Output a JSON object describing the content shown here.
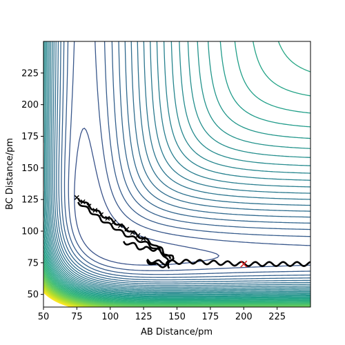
{
  "chart_data": {
    "type": "contour",
    "title": "",
    "xlabel": "AB Distance/pm",
    "ylabel": "BC Distance/pm",
    "xlim": [
      50,
      250
    ],
    "ylim": [
      40,
      250
    ],
    "xticks": [
      50,
      75,
      100,
      125,
      150,
      175,
      200,
      225
    ],
    "yticks": [
      50,
      75,
      100,
      125,
      150,
      175,
      200,
      225
    ],
    "colormap": "viridis",
    "contour_levels": 60,
    "surface": "London-Eyring-Polanyi-Sato potential energy surface (contours)",
    "trajectory": {
      "color": "#000000",
      "marker": "x",
      "start": [
        76,
        126
      ],
      "segments": [
        {
          "x": [
            76,
            95,
            115,
            132,
            145
          ],
          "y": [
            126,
            112,
            100,
            90,
            78
          ],
          "oscillation": 2
        },
        {
          "x": [
            76,
            95,
            112,
            128,
            140,
            145
          ],
          "y": [
            123,
            108,
            97,
            90,
            82,
            71
          ],
          "oscillation": 2
        },
        {
          "x": [
            110,
            125,
            137,
            146,
            143,
            133,
            128,
            138,
            160,
            200,
            250
          ],
          "y": [
            92,
            86,
            86,
            79,
            73,
            73,
            77,
            75,
            76,
            74,
            74
          ],
          "oscillation": 3
        }
      ]
    },
    "end_marker": {
      "x": 200,
      "y": 74,
      "color": "#d62728",
      "symbol": "x"
    }
  }
}
